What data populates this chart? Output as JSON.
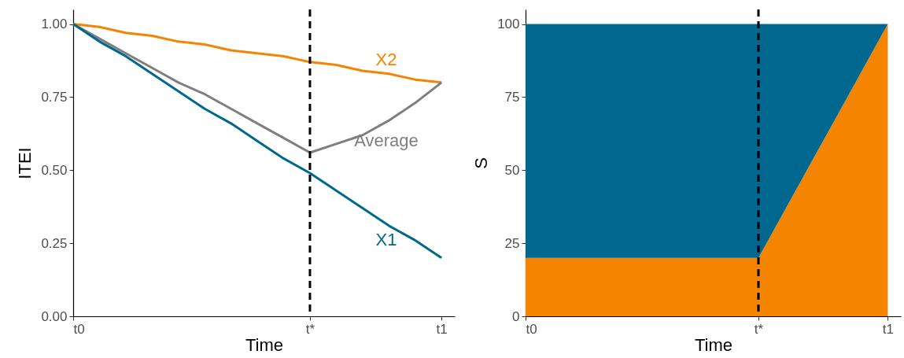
{
  "chart_data": [
    {
      "type": "line",
      "xlabel": "Time",
      "ylabel": "ITEI",
      "categories": [
        "t0",
        null,
        null,
        null,
        null,
        null,
        null,
        null,
        null,
        "t*",
        null,
        null,
        null,
        null,
        "t1"
      ],
      "ylim": [
        0,
        1.05
      ],
      "yticks": [
        {
          "value": 0,
          "label": "0.00"
        },
        {
          "value": 0.25,
          "label": "0.25"
        },
        {
          "value": 0.5,
          "label": "0.50"
        },
        {
          "value": 0.75,
          "label": "0.75"
        },
        {
          "value": 1,
          "label": "1.00"
        }
      ],
      "grid": false,
      "legend": false,
      "ref_lines": [
        {
          "axis": "x",
          "value": "t*",
          "color": "#000000",
          "line_style": "dashed"
        }
      ],
      "series": [
        {
          "name": "X2",
          "color": "#f58400",
          "values": [
            1,
            0.99,
            0.97,
            0.96,
            0.94,
            0.93,
            0.91,
            0.9,
            0.89,
            0.87,
            0.86,
            0.84,
            0.83,
            0.81,
            0.8
          ]
        },
        {
          "name": "Average",
          "color": "#7f7f7f",
          "values": [
            1,
            0.95,
            0.9,
            0.85,
            0.8,
            0.76,
            0.71,
            0.66,
            0.61,
            0.56,
            0.59,
            0.62,
            0.67,
            0.73,
            0.8
          ]
        },
        {
          "name": "X1",
          "color": "#00688f",
          "values": [
            1,
            0.94,
            0.89,
            0.83,
            0.77,
            0.71,
            0.66,
            0.6,
            0.54,
            0.49,
            0.43,
            0.37,
            0.31,
            0.26,
            0.2
          ]
        }
      ]
    },
    {
      "type": "area",
      "stacked": true,
      "xlabel": "Time",
      "ylabel": "S",
      "categories": [
        "t0",
        null,
        null,
        null,
        null,
        null,
        null,
        null,
        null,
        "t*",
        null,
        null,
        null,
        null,
        "t1"
      ],
      "ylim": [
        0,
        105
      ],
      "yticks": [
        0,
        25,
        50,
        75,
        100
      ],
      "grid": false,
      "legend": false,
      "ref_lines": [
        {
          "axis": "x",
          "value": "t*",
          "color": "#000000",
          "line_style": "dashed"
        }
      ],
      "series": [
        {
          "color": "#f58400",
          "values": [
            20,
            20,
            20,
            20,
            20,
            20,
            20,
            20,
            20,
            20,
            36,
            52,
            68,
            84,
            100
          ]
        },
        {
          "color": "#00688f",
          "values": [
            80,
            80,
            80,
            80,
            80,
            80,
            80,
            80,
            80,
            80,
            64,
            48,
            32,
            16,
            0
          ]
        }
      ]
    }
  ]
}
